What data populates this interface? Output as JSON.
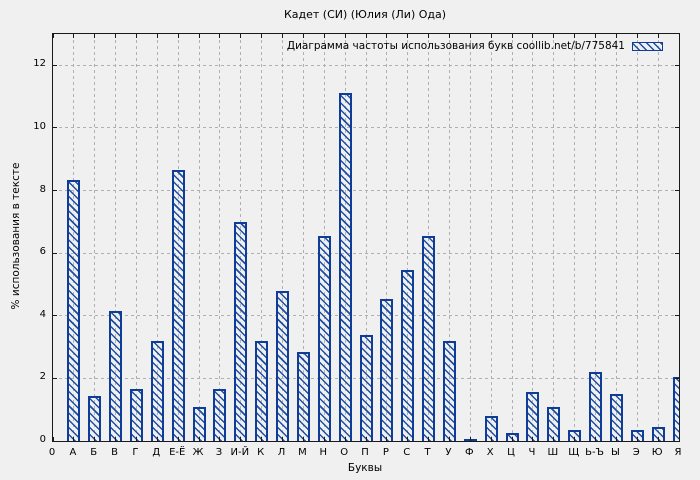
{
  "chart_data": {
    "type": "bar",
    "title": "Кадет (СИ) (Юлия (Ли) Ода)",
    "legend": "Диаграмма частоты использования букв coollib.net/b/775841",
    "xlabel": "Буквы",
    "ylabel": "% использования в тексте",
    "categories": [
      "0",
      "А",
      "Б",
      "В",
      "Г",
      "Д",
      "Е-Ё",
      "Ж",
      "З",
      "И-Й",
      "К",
      "Л",
      "М",
      "Н",
      "О",
      "П",
      "Р",
      "С",
      "Т",
      "У",
      "Ф",
      "Х",
      "Ц",
      "Ч",
      "Ш",
      "Щ",
      "Ь-Ъ",
      "Ы",
      "Э",
      "Ю",
      "Я"
    ],
    "values": [
      0,
      8.35,
      1.45,
      4.15,
      1.65,
      3.2,
      8.65,
      1.1,
      1.65,
      7.0,
      3.2,
      4.8,
      2.85,
      6.55,
      11.1,
      3.4,
      4.55,
      5.45,
      6.55,
      3.2,
      0.05,
      0.8,
      0.25,
      1.55,
      1.1,
      0.35,
      2.2,
      1.5,
      0.35,
      0.45,
      2.05
    ],
    "yticks": [
      0,
      2,
      4,
      6,
      8,
      10,
      12
    ],
    "ylim": [
      0,
      13
    ],
    "grid": "dashed",
    "legend_position": "top-right",
    "colors": {
      "background": "#f0f0f0",
      "bar_border": "#0e3c96",
      "bar_hatch": "#1d4fa5",
      "grid": "#b0b0b0",
      "axis": "#1a1a1a",
      "text": "#000000"
    }
  }
}
